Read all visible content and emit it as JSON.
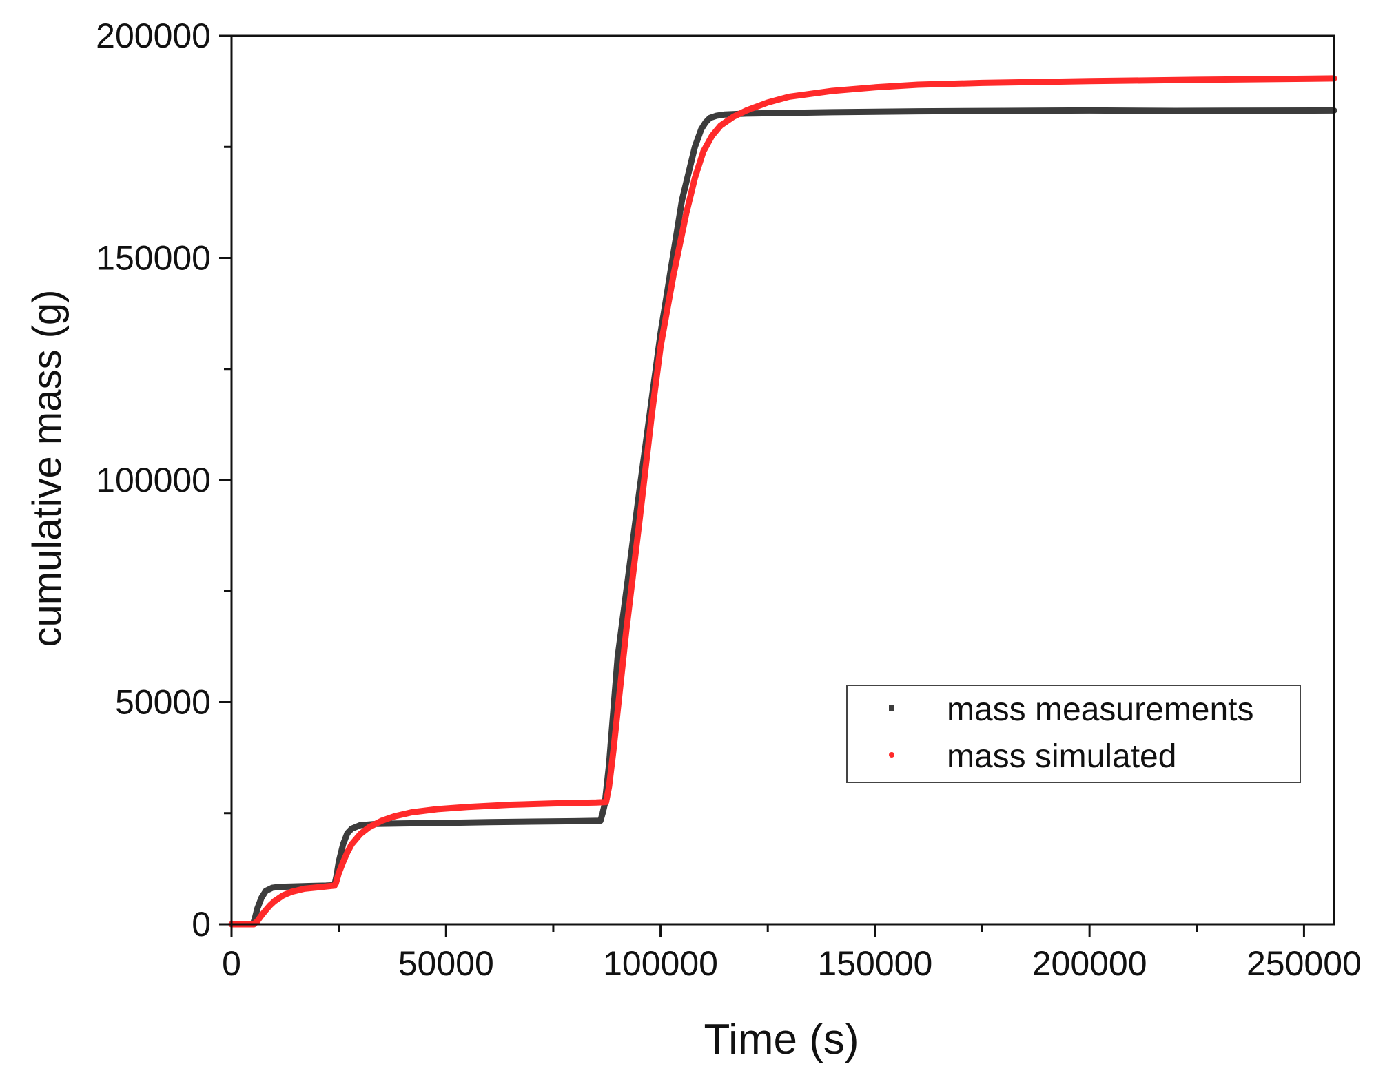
{
  "chart_data": {
    "type": "line",
    "title": "",
    "xlabel": "Time (s)",
    "ylabel": "cumulative mass (g)",
    "xlim": [
      0,
      257000
    ],
    "ylim": [
      0,
      200000
    ],
    "x_ticks": [
      0,
      50000,
      100000,
      150000,
      200000,
      250000
    ],
    "y_ticks": [
      0,
      50000,
      100000,
      150000,
      200000
    ],
    "x_tick_labels": [
      "0",
      "50000",
      "100000",
      "150000",
      "200000",
      "250000"
    ],
    "y_tick_labels": [
      "0",
      "50000",
      "100000",
      "150000",
      "200000"
    ],
    "grid": false,
    "legend_position": "center-right",
    "series": [
      {
        "name": "mass measurements",
        "color": "#3c3c3c",
        "x": [
          0,
          5000,
          5500,
          6000,
          7000,
          8000,
          9500,
          11000,
          14000,
          18000,
          22000,
          24000,
          24500,
          25000,
          26000,
          27000,
          28000,
          30000,
          34000,
          40000,
          50000,
          60000,
          70000,
          80000,
          86000,
          86500,
          87000,
          88000,
          89000,
          90000,
          95000,
          100000,
          105000,
          108000,
          109500,
          110500,
          111500,
          113000,
          115000,
          120000,
          140000,
          160000,
          180000,
          200000,
          220000,
          257000
        ],
        "y": [
          0,
          0,
          1500,
          3500,
          6000,
          7500,
          8200,
          8400,
          8500,
          8600,
          8700,
          8800,
          11000,
          14000,
          18000,
          20500,
          21500,
          22300,
          22600,
          22700,
          22800,
          23000,
          23100,
          23200,
          23300,
          25000,
          27000,
          36000,
          48000,
          60000,
          97000,
          133000,
          163000,
          175000,
          179000,
          180500,
          181500,
          182000,
          182300,
          182500,
          182800,
          183000,
          183100,
          183200,
          183100,
          183200
        ]
      },
      {
        "name": "mass simulated",
        "color": "#ff2a2a",
        "x": [
          0,
          5200,
          6000,
          7000,
          8000,
          9000,
          10000,
          12000,
          14000,
          17000,
          20000,
          23000,
          24000,
          24300,
          25000,
          26000,
          27000,
          28000,
          30000,
          32000,
          35000,
          38000,
          42000,
          48000,
          55000,
          65000,
          75000,
          85000,
          87300,
          88000,
          89000,
          90000,
          92000,
          95000,
          98000,
          100000,
          103000,
          106000,
          108000,
          110000,
          112000,
          114000,
          117000,
          120000,
          125000,
          130000,
          140000,
          150000,
          160000,
          175000,
          200000,
          225000,
          257000
        ],
        "y": [
          0,
          0,
          700,
          2000,
          3200,
          4300,
          5200,
          6500,
          7300,
          8000,
          8300,
          8600,
          8700,
          9200,
          11500,
          14000,
          16200,
          18000,
          20300,
          21800,
          23300,
          24300,
          25200,
          25900,
          26400,
          26900,
          27200,
          27400,
          27500,
          31000,
          39000,
          48000,
          66000,
          90000,
          115000,
          130000,
          146000,
          160000,
          168000,
          174000,
          177500,
          179800,
          181800,
          183200,
          185000,
          186300,
          187600,
          188400,
          189000,
          189400,
          189800,
          190100,
          190400
        ]
      }
    ]
  }
}
